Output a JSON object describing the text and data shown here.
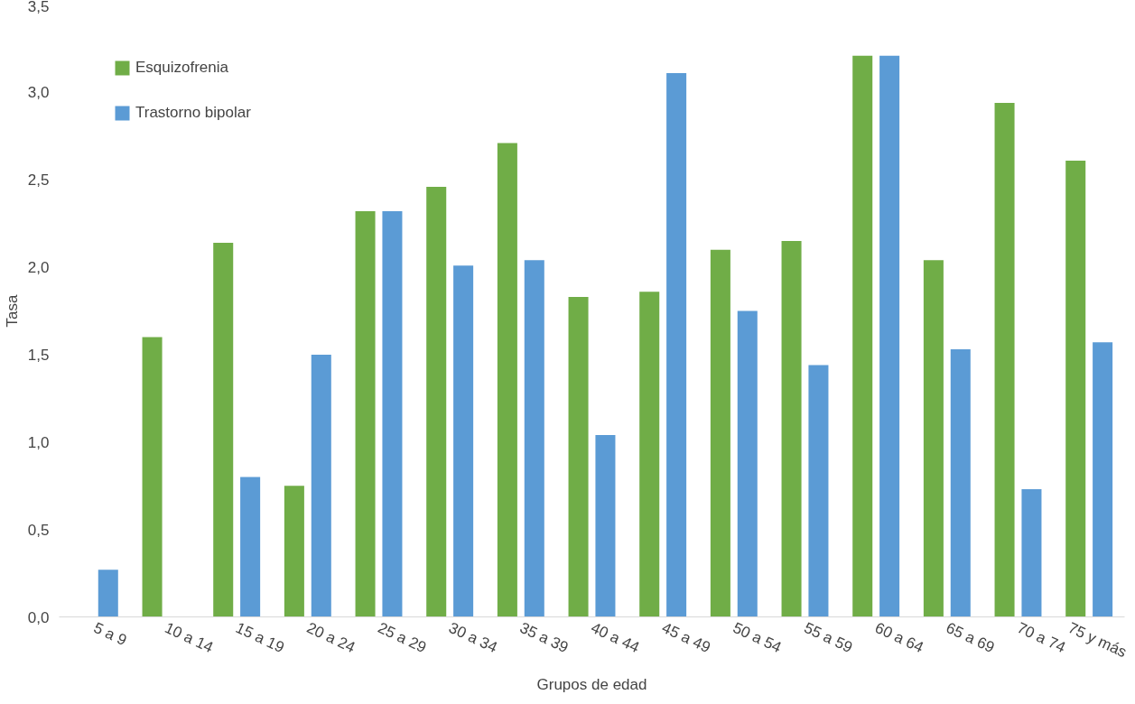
{
  "chart_data": {
    "type": "bar",
    "xlabel": "Grupos de edad",
    "ylabel": "Tasa",
    "categories": [
      "5 a 9",
      "10 a 14",
      "15 a 19",
      "20 a 24",
      "25 a 29",
      "30 a 34",
      "35 a 39",
      "40 a 44",
      "45 a 49",
      "50 a 54",
      "55 a 59",
      "60 a 64",
      "65 a 69",
      "70 a 74",
      "75 y más"
    ],
    "series": [
      {
        "name": "Esquizofrenia",
        "color": "#70ad47",
        "values": [
          0,
          1.6,
          2.14,
          0.75,
          2.32,
          2.46,
          2.71,
          1.83,
          1.86,
          2.1,
          2.15,
          3.21,
          2.04,
          2.94,
          2.61
        ]
      },
      {
        "name": "Trastorno bipolar",
        "color": "#5b9bd5",
        "values": [
          0.27,
          0,
          0.8,
          1.5,
          2.32,
          2.01,
          2.04,
          1.04,
          3.11,
          1.75,
          1.44,
          3.21,
          1.53,
          0.73,
          1.57
        ]
      }
    ],
    "ylim": [
      0,
      3.5
    ],
    "yticks": [
      {
        "value": 0,
        "label": "0,0"
      },
      {
        "value": 0.5,
        "label": "0,5"
      },
      {
        "value": 1,
        "label": "1,0"
      },
      {
        "value": 1.5,
        "label": "1,5"
      },
      {
        "value": 2,
        "label": "2,0"
      },
      {
        "value": 2.5,
        "label": "2,5"
      },
      {
        "value": 3,
        "label": "3,0"
      },
      {
        "value": 3.5,
        "label": "3,5"
      }
    ],
    "grid": false,
    "legend": "top left"
  }
}
